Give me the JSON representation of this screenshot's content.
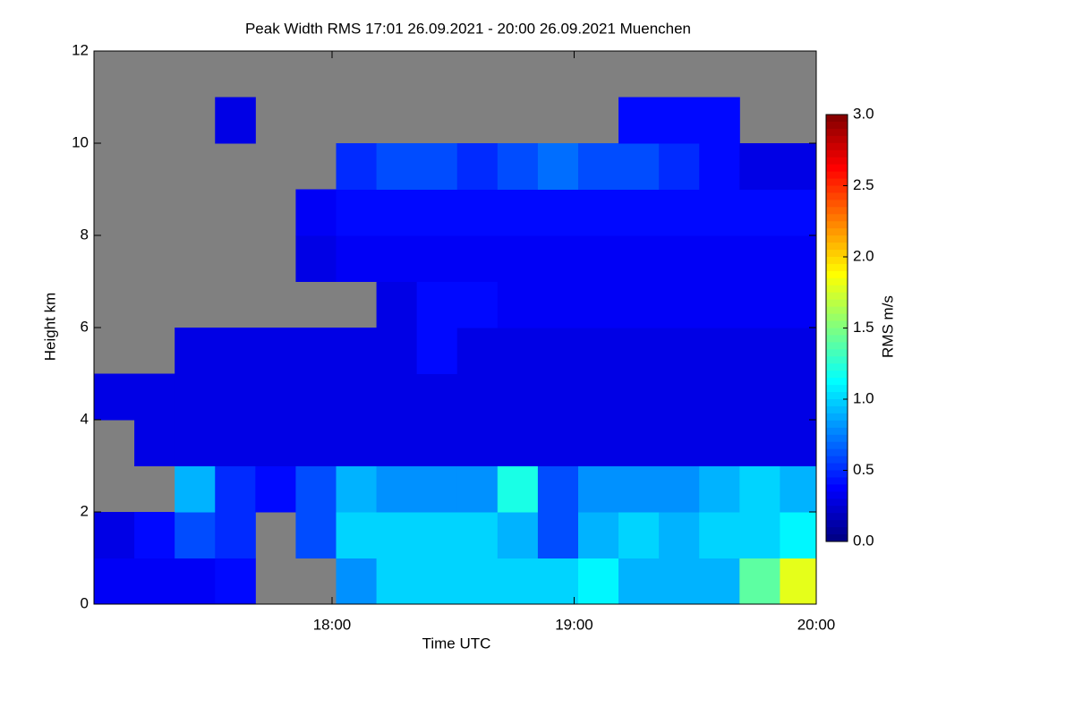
{
  "chart_data": {
    "type": "heatmap",
    "title": "Peak Width RMS   17:01 26.09.2021 - 20:00 26.09.2021 Muenchen",
    "xlabel": "Time UTC",
    "ylabel": "Height km",
    "colorbar_label": "RMS m/s",
    "colormap": "jet",
    "missing_color": "#808080",
    "xlim": [
      1021,
      1200
    ],
    "xticks": [
      {
        "value": 1080,
        "label": "18:00"
      },
      {
        "value": 1140,
        "label": "19:00"
      },
      {
        "value": 1200,
        "label": "20:00"
      }
    ],
    "ylim": [
      0,
      12
    ],
    "yticks": [
      0,
      2,
      4,
      6,
      8,
      10,
      12
    ],
    "zlim": [
      0,
      3
    ],
    "zticks": [
      {
        "value": 0,
        "label": "0.0"
      },
      {
        "value": 0.5,
        "label": "0.5"
      },
      {
        "value": 1,
        "label": "1.0"
      },
      {
        "value": 1.5,
        "label": "1.5"
      },
      {
        "value": 2,
        "label": "2.0"
      },
      {
        "value": 2.5,
        "label": "2.5"
      },
      {
        "value": 3,
        "label": "3.0"
      }
    ],
    "x": [
      1026,
      1036,
      1046,
      1056,
      1066,
      1076,
      1086,
      1096,
      1106,
      1116,
      1126,
      1136,
      1146,
      1156,
      1166,
      1176,
      1186,
      1196
    ],
    "y": [
      0.5,
      1.5,
      2.5,
      3.5,
      4.5,
      5.5,
      6.5,
      7.5,
      8.5,
      9.5,
      10.5,
      11.5
    ],
    "values": [
      [
        0.35,
        0.35,
        0.35,
        0.4,
        null,
        null,
        0.8,
        1.0,
        1.0,
        1.0,
        1.0,
        1.0,
        1.1,
        0.9,
        0.9,
        0.9,
        1.4,
        1.8
      ],
      [
        0.3,
        0.4,
        0.6,
        0.5,
        null,
        0.6,
        1.0,
        1.0,
        1.0,
        1.0,
        0.9,
        0.6,
        0.9,
        1.0,
        0.9,
        1.0,
        1.0,
        1.1
      ],
      [
        null,
        null,
        0.9,
        0.5,
        0.4,
        0.6,
        0.9,
        0.8,
        0.8,
        0.8,
        1.2,
        0.6,
        0.8,
        0.8,
        0.8,
        0.9,
        1.0,
        0.9
      ],
      [
        null,
        0.3,
        0.3,
        0.3,
        0.3,
        0.3,
        0.3,
        0.3,
        0.3,
        0.3,
        0.3,
        0.3,
        0.3,
        0.3,
        0.3,
        0.3,
        0.3,
        0.3
      ],
      [
        0.3,
        0.3,
        0.3,
        0.3,
        0.3,
        0.3,
        0.3,
        0.3,
        0.3,
        0.3,
        0.3,
        0.3,
        0.3,
        0.3,
        0.3,
        0.3,
        0.3,
        0.3
      ],
      [
        null,
        null,
        0.3,
        0.3,
        0.3,
        0.3,
        0.3,
        0.3,
        0.4,
        0.3,
        0.3,
        0.3,
        0.3,
        0.3,
        0.3,
        0.3,
        0.3,
        0.3
      ],
      [
        null,
        null,
        null,
        null,
        null,
        null,
        null,
        0.3,
        0.4,
        0.4,
        0.35,
        0.35,
        0.35,
        0.35,
        0.35,
        0.35,
        0.35,
        0.35
      ],
      [
        null,
        null,
        null,
        null,
        null,
        0.3,
        0.35,
        0.35,
        0.35,
        0.35,
        0.35,
        0.35,
        0.35,
        0.35,
        0.35,
        0.35,
        0.35,
        0.35
      ],
      [
        null,
        null,
        null,
        null,
        null,
        0.35,
        0.4,
        0.4,
        0.4,
        0.4,
        0.4,
        0.4,
        0.4,
        0.4,
        0.4,
        0.4,
        0.4,
        0.4
      ],
      [
        null,
        null,
        null,
        null,
        null,
        null,
        0.5,
        0.6,
        0.6,
        0.5,
        0.6,
        0.7,
        0.6,
        0.6,
        0.5,
        0.4,
        0.3,
        0.3
      ],
      [
        null,
        null,
        null,
        0.3,
        null,
        null,
        null,
        null,
        null,
        null,
        null,
        null,
        null,
        0.4,
        0.4,
        0.4,
        null,
        null
      ],
      [
        null,
        null,
        null,
        null,
        null,
        null,
        null,
        null,
        null,
        null,
        null,
        null,
        null,
        null,
        null,
        null,
        null,
        null
      ]
    ]
  }
}
